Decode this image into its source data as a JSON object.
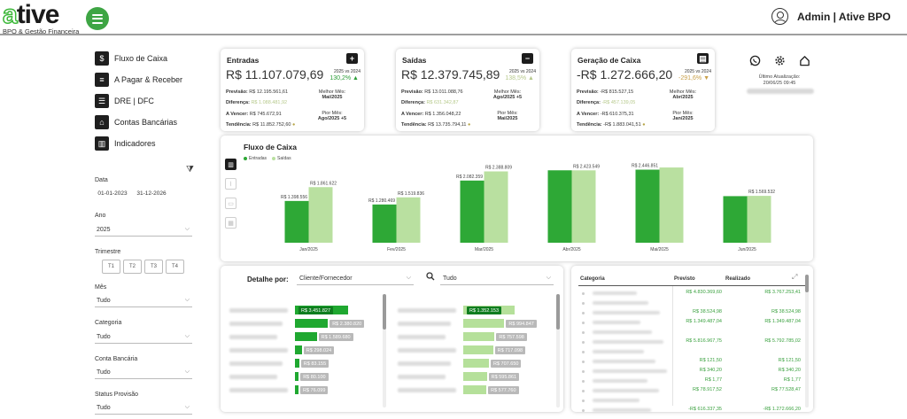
{
  "header": {
    "logo_letter": "a",
    "logo_rest": "tive",
    "logo_sub": "BPO & Gestão Financeira",
    "user": "Admin | Ative BPO"
  },
  "nav": [
    {
      "label": "Fluxo de Caixa",
      "icon": "dollar-icon",
      "glyph": "$"
    },
    {
      "label": "A Pagar & Receber",
      "icon": "document-icon",
      "glyph": "≡"
    },
    {
      "label": "DRE | DFC",
      "icon": "list-icon",
      "glyph": "☰"
    },
    {
      "label": "Contas Bancárias",
      "icon": "bank-icon",
      "glyph": "⌂"
    },
    {
      "label": "Indicadores",
      "icon": "bar-chart-icon",
      "glyph": "▥"
    }
  ],
  "filters": {
    "clear_icon": "⧩",
    "date_label": "Data",
    "date_from": "01-01-2023",
    "date_to": "31-12-2026",
    "ano_label": "Ano",
    "ano_value": "2025",
    "trimestre_label": "Trimestre",
    "trimestres": [
      "T1",
      "T2",
      "T3",
      "T4"
    ],
    "mes_label": "Mês",
    "mes_value": "Tudo",
    "categoria_label": "Categoria",
    "categoria_value": "Tudo",
    "conta_label": "Conta Bancária",
    "conta_value": "Tudo",
    "status_label": "Status Provisão",
    "status_value": "Tudo"
  },
  "kpis": [
    {
      "title": "Entradas",
      "icon_glyph": "+",
      "value": "R$ 11.107.079,69",
      "cmp_label": "2025 vs 2024",
      "pct": "130,2% ▲",
      "pct_color": "#2e9e3a",
      "previsao_label": "Previsão:",
      "previsao": "R$ 12.195.561,61",
      "diferenca_label": "Diferença:",
      "diferenca": "R$ 1.088.481,92",
      "avencer_label": "A Vencer:",
      "avencer": "R$ 745.672,91",
      "tendencia_label": "Tendência:",
      "tendencia": "R$ 11.852.752,60",
      "melhor_label": "Melhor Mês:",
      "melhor": "Mai/2025",
      "pior_label": "Pior Mês:",
      "pior": "Ago/2025 +5"
    },
    {
      "title": "Saídas",
      "icon_glyph": "−",
      "value": "R$ 12.379.745,89",
      "cmp_label": "2025 vs 2024",
      "pct": "138,5% ▲",
      "pct_color": "#b7c98d",
      "previsao_label": "Previsão:",
      "previsao": "R$ 13.011.088,76",
      "diferenca_label": "Diferença:",
      "diferenca": "R$ 631.342,87",
      "avencer_label": "A Vencer:",
      "avencer": "R$ 1.356.048,22",
      "tendencia_label": "Tendência:",
      "tendencia": "R$ 13.735.794,11",
      "melhor_label": "Melhor Mês:",
      "melhor": "Ago/2025 +5",
      "pior_label": "Pior Mês:",
      "pior": "Mai/2025"
    },
    {
      "title": "Geração de Caixa",
      "icon_glyph": "▤",
      "value": "-R$ 1.272.666,20",
      "cmp_label": "2025 vs 2024",
      "pct": "-291,6% ▼",
      "pct_color": "#c9a04a",
      "previsao_label": "Previsão:",
      "previsao": "-R$ 815.527,15",
      "diferenca_label": "Diferença:",
      "diferenca": "-R$ 457.139,05",
      "avencer_label": "A Vencer:",
      "avencer": "-R$ 610.375,31",
      "tendencia_label": "Tendência:",
      "tendencia": "-R$ 1.883.041,51",
      "melhor_label": "Melhor Mês:",
      "melhor": "Abr/2025",
      "pior_label": "Pior Mês:",
      "pior": "Jan/2025"
    }
  ],
  "update": {
    "label": "Último Atualização:",
    "datetime": "20/06/25 09:45"
  },
  "chart_data": {
    "type": "bar",
    "title": "Fluxo de Caixa",
    "categories": [
      "Jan/2025",
      "Fev/2025",
      "Mar/2025",
      "Abr/2025",
      "Mai/2025",
      "Jun/2025"
    ],
    "series": [
      {
        "name": "Entradas",
        "color": "#2ea836",
        "values": [
          1398556,
          1280469,
          2082359,
          2425549,
          2446851,
          1560000
        ],
        "labels": [
          "R$ 1.398.556",
          "R$ 1.280.469",
          "R$ 2.082.359",
          "",
          "R$ 2.446.851",
          ""
        ]
      },
      {
        "name": "Saídas",
        "color": "#b9e0a0",
        "values": [
          1861622,
          1519836,
          2388809,
          2423549,
          2520000,
          1569532
        ],
        "labels": [
          "R$ 1.861.622",
          "R$ 1.519.836",
          "R$ 2.388.809",
          "R$ 2.423.549",
          "",
          "R$ 1.569.532"
        ]
      }
    ],
    "ylim": [
      0,
      2700000
    ],
    "legend": "top-left"
  },
  "detail": {
    "label": "Detalhe por:",
    "groupby": "Cliente/Fornecedor",
    "search_value": "Tudo",
    "left_bars": [
      {
        "value": 1.0,
        "label": "R$ 3.451.827",
        "highlight": true
      },
      {
        "value": 0.62,
        "label": "R$ 2.380.820"
      },
      {
        "value": 0.41,
        "label": "R$ 1.589.680"
      },
      {
        "value": 0.13,
        "label": "R$ 298.024"
      },
      {
        "value": 0.08,
        "label": "R$ 83.155"
      },
      {
        "value": 0.07,
        "label": "R$ 80.100"
      },
      {
        "value": 0.06,
        "label": "R$ 76.099"
      }
    ],
    "right_bars": [
      {
        "value": 1.0,
        "label": "R$ 1.352.153",
        "highlight": true
      },
      {
        "value": 0.8,
        "label": "R$ 994.847"
      },
      {
        "value": 0.61,
        "label": "R$ 757.598"
      },
      {
        "value": 0.58,
        "label": "R$ 717.098"
      },
      {
        "value": 0.5,
        "label": "R$ 707.650"
      },
      {
        "value": 0.46,
        "label": "R$ 595.861"
      },
      {
        "value": 0.45,
        "label": "R$ 577.760"
      }
    ]
  },
  "table": {
    "col_categoria": "Categoria",
    "col_previsto": "Previsto",
    "col_realizado": "Realizado",
    "rows": [
      {
        "previsto": "R$ 4.830.369,60",
        "realizado": "R$ 3.767.253,41"
      },
      {
        "previsto": "",
        "realizado": ""
      },
      {
        "previsto": "R$ 38.524,98",
        "realizado": "R$ 38.524,98"
      },
      {
        "previsto": "R$ 1.349.487,04",
        "realizado": "R$ 1.349.487,04"
      },
      {
        "previsto": "",
        "realizado": ""
      },
      {
        "previsto": "R$ 5.816.967,75",
        "realizado": "R$ 5.792.785,02"
      },
      {
        "previsto": "",
        "realizado": ""
      },
      {
        "previsto": "R$ 121,50",
        "realizado": "R$ 121,50"
      },
      {
        "previsto": "R$ 340,20",
        "realizado": "R$ 340,20"
      },
      {
        "previsto": "R$ 1,77",
        "realizado": "R$ 1,77"
      },
      {
        "previsto": "R$ 78.917,52",
        "realizado": "R$ 77.528,47"
      },
      {
        "previsto": "",
        "realizado": ""
      },
      {
        "previsto": "-R$ 616.337,35",
        "realizado": "-R$ 1.272.666,20"
      }
    ]
  }
}
